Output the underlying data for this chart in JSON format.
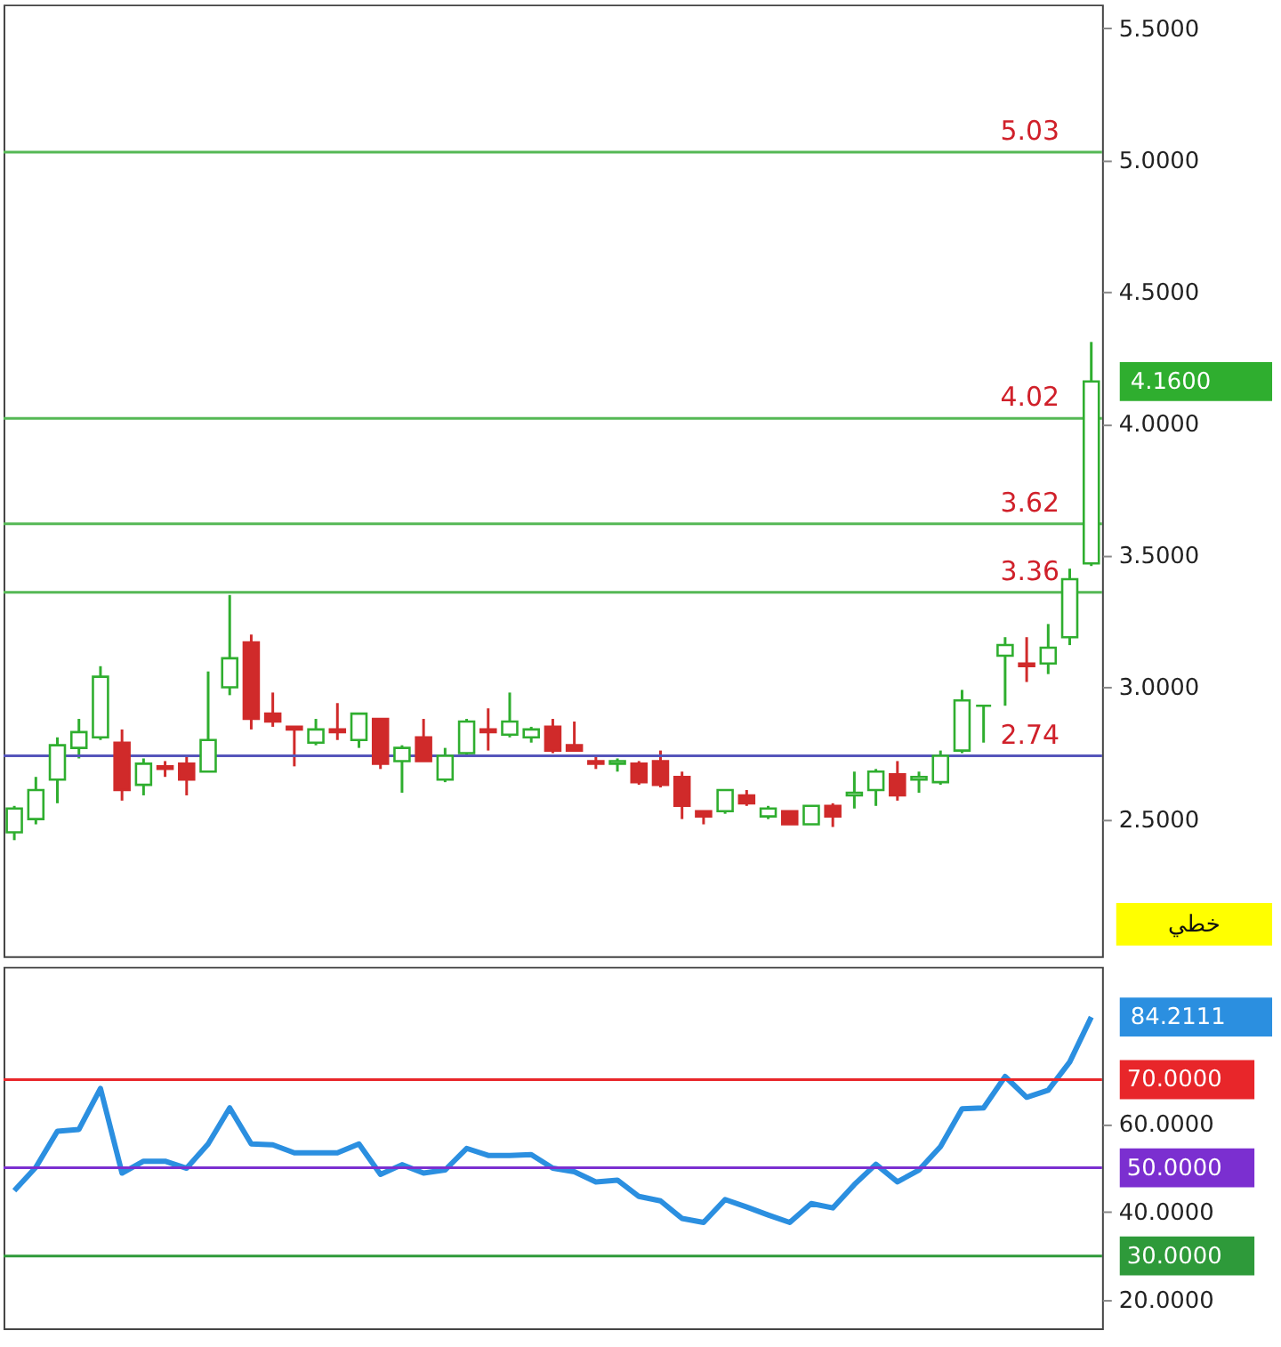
{
  "chart_data": [
    {
      "type": "candlestick",
      "categories": [
        null,
        null,
        null,
        null,
        null,
        null,
        null,
        null,
        null,
        null,
        null,
        null,
        null,
        null,
        null,
        null,
        null,
        null,
        null,
        null,
        null,
        null,
        null,
        null,
        null,
        null,
        null,
        null,
        null,
        null,
        null,
        null,
        null,
        null,
        null,
        null,
        null,
        null,
        null,
        null,
        null,
        null,
        null,
        null,
        null,
        null,
        null,
        null,
        null,
        null,
        null
      ],
      "ohlc": [
        [
          2.45,
          2.55,
          2.42,
          2.54
        ],
        [
          2.5,
          2.66,
          2.48,
          2.61
        ],
        [
          2.65,
          2.81,
          2.56,
          2.78
        ],
        [
          2.77,
          2.88,
          2.73,
          2.83
        ],
        [
          2.81,
          3.08,
          2.8,
          3.04
        ],
        [
          2.79,
          2.84,
          2.57,
          2.61
        ],
        [
          2.63,
          2.73,
          2.59,
          2.71
        ],
        [
          2.7,
          2.72,
          2.66,
          2.69
        ],
        [
          2.71,
          2.74,
          2.59,
          2.65
        ],
        [
          2.68,
          3.06,
          2.68,
          2.8
        ],
        [
          3.0,
          3.35,
          2.97,
          3.11
        ],
        [
          3.17,
          3.2,
          2.84,
          2.88
        ],
        [
          2.9,
          2.98,
          2.85,
          2.87
        ],
        [
          2.85,
          2.85,
          2.7,
          2.84
        ],
        [
          2.79,
          2.88,
          2.78,
          2.84
        ],
        [
          2.84,
          2.94,
          2.8,
          2.83
        ],
        [
          2.8,
          2.9,
          2.77,
          2.9
        ],
        [
          2.88,
          2.88,
          2.69,
          2.71
        ],
        [
          2.72,
          2.78,
          2.6,
          2.77
        ],
        [
          2.81,
          2.88,
          2.72,
          2.72
        ],
        [
          2.65,
          2.77,
          2.64,
          2.74
        ],
        [
          2.75,
          2.88,
          2.74,
          2.87
        ],
        [
          2.84,
          2.92,
          2.76,
          2.83
        ],
        [
          2.82,
          2.98,
          2.81,
          2.87
        ],
        [
          2.81,
          2.85,
          2.79,
          2.84
        ],
        [
          2.85,
          2.88,
          2.75,
          2.76
        ],
        [
          2.78,
          2.87,
          2.76,
          2.76
        ],
        [
          2.72,
          2.74,
          2.69,
          2.71
        ],
        [
          2.71,
          2.73,
          2.68,
          2.72
        ],
        [
          2.71,
          2.72,
          2.63,
          2.64
        ],
        [
          2.72,
          2.76,
          2.62,
          2.63
        ],
        [
          2.66,
          2.68,
          2.5,
          2.55
        ],
        [
          2.53,
          2.53,
          2.48,
          2.51
        ],
        [
          2.53,
          2.61,
          2.52,
          2.61
        ],
        [
          2.59,
          2.61,
          2.55,
          2.56
        ],
        [
          2.51,
          2.55,
          2.5,
          2.54
        ],
        [
          2.53,
          2.53,
          2.48,
          2.48
        ],
        [
          2.48,
          2.55,
          2.48,
          2.55
        ],
        [
          2.55,
          2.56,
          2.47,
          2.51
        ],
        [
          2.59,
          2.68,
          2.54,
          2.6
        ],
        [
          2.61,
          2.69,
          2.55,
          2.68
        ],
        [
          2.67,
          2.72,
          2.57,
          2.59
        ],
        [
          2.65,
          2.68,
          2.6,
          2.66
        ],
        [
          2.64,
          2.76,
          2.63,
          2.74
        ],
        [
          2.76,
          2.99,
          2.75,
          2.95
        ],
        [
          2.93,
          2.93,
          2.79,
          2.93
        ],
        [
          3.12,
          3.19,
          2.93,
          3.16
        ],
        [
          3.09,
          3.19,
          3.02,
          3.08
        ],
        [
          3.09,
          3.24,
          3.05,
          3.15
        ],
        [
          3.19,
          3.45,
          3.16,
          3.41
        ],
        [
          3.47,
          4.31,
          3.46,
          4.16
        ]
      ],
      "ylim": [
        1.98,
        5.59
      ],
      "yticks": [
        {
          "value": 2.5,
          "label": "2.5000"
        },
        {
          "value": 3,
          "label": "3.0000"
        },
        {
          "value": 3.5,
          "label": "3.5000"
        },
        {
          "value": 4,
          "label": "4.0000"
        },
        {
          "value": 4.5,
          "label": "4.5000"
        },
        {
          "value": 5,
          "label": "5.0000"
        },
        {
          "value": 5.5,
          "label": "5.5000"
        }
      ],
      "tick_labels": "y",
      "grid": false,
      "ref_lines": [
        {
          "axis": "y",
          "value": 5.03,
          "label": "5.03",
          "color": "#55b855"
        },
        {
          "axis": "y",
          "value": 4.02,
          "label": "4.02",
          "color": "#55b855"
        },
        {
          "axis": "y",
          "value": 3.62,
          "label": "3.62",
          "color": "#55b855"
        },
        {
          "axis": "y",
          "value": 3.36,
          "label": "3.36",
          "color": "#55b855"
        },
        {
          "axis": "y",
          "value": 2.74,
          "label": "2.74",
          "color": "#5555bb"
        }
      ],
      "annotations": [
        "4.1600",
        "خطي"
      ]
    },
    {
      "type": "line",
      "categories": [
        null,
        null,
        null,
        null,
        null,
        null,
        null,
        null,
        null,
        null,
        null,
        null,
        null,
        null,
        null,
        null,
        null,
        null,
        null,
        null,
        null,
        null,
        null,
        null,
        null,
        null,
        null,
        null,
        null,
        null,
        null,
        null,
        null,
        null,
        null,
        null,
        null,
        null,
        null,
        null,
        null,
        null,
        null,
        null,
        null,
        null,
        null,
        null,
        null,
        null,
        null
      ],
      "series": [
        {
          "color": "#2b8fe0",
          "values": [
            44.8,
            50.1,
            58.3,
            58.7,
            68.0,
            48.8,
            51.5,
            51.5,
            49.9,
            55.4,
            63.6,
            55.4,
            55.2,
            53.4,
            53.4,
            53.4,
            55.4,
            48.5,
            50.7,
            48.8,
            49.5,
            54.4,
            52.8,
            52.8,
            53.0,
            49.9,
            49.1,
            46.8,
            47.2,
            43.5,
            42.5,
            38.5,
            37.6,
            42.8,
            41.1,
            39.3,
            37.6,
            41.9,
            40.9,
            46.2,
            50.8,
            46.8,
            49.5,
            54.8,
            63.4,
            63.6,
            70.7,
            66.0,
            67.6,
            74.0,
            84.2
          ]
        }
      ],
      "ylim": [
        13.6,
        95.6
      ],
      "yticks": [
        {
          "value": 20,
          "label": "20.0000"
        },
        {
          "value": 40,
          "label": "40.0000"
        },
        {
          "value": 60,
          "label": "60.0000"
        }
      ],
      "tick_labels": "y",
      "grid": false,
      "ref_lines": [
        {
          "axis": "y",
          "value": 70,
          "label": "70.0000",
          "color": "#e8262a"
        },
        {
          "axis": "y",
          "value": 50,
          "label": "50.0000",
          "color": "#7b2fd0"
        },
        {
          "axis": "y",
          "value": 30,
          "label": "30.0000",
          "color": "#2e9a3a"
        }
      ],
      "annotations": [
        "84.2111"
      ]
    }
  ]
}
